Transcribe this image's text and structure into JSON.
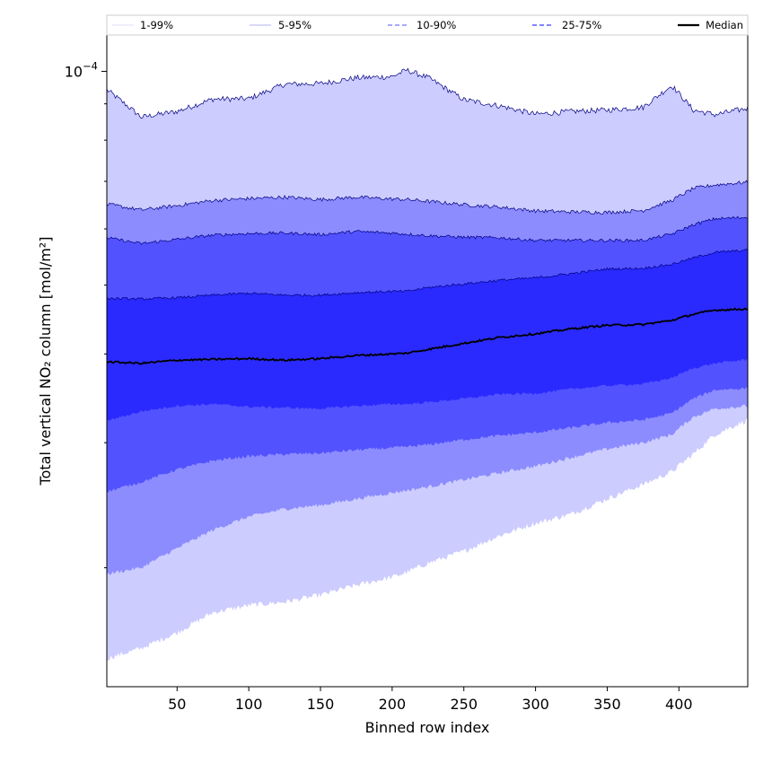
{
  "chart_data": {
    "type": "area",
    "xlabel": "Binned row index",
    "ylabel": "Total vertical NO₂ column [mol/m²]",
    "yscale": "log",
    "xlim": [
      1,
      448
    ],
    "ylim": [
      1.36e-05,
      0.0001125
    ],
    "x_ticks": [
      50,
      100,
      150,
      200,
      250,
      300,
      350,
      400
    ],
    "y_tick_labels": [
      {
        "value": 0.0001,
        "base": "10",
        "exponent": "−4"
      }
    ],
    "y_minor_ticks": [
      2e-05,
      3e-05,
      4e-05,
      5e-05,
      6e-05,
      7e-05,
      8e-05,
      9e-05
    ],
    "grid": false,
    "legend_position": "top",
    "legend": [
      "1-99%",
      "5-95%",
      "10-90%",
      "25-75%",
      "Median"
    ],
    "colors": {
      "band_1_99": "#ccccff",
      "band_5_95": "#8c8cff",
      "band_10_90": "#5252ff",
      "band_25_75": "#2a2aff",
      "median": "#000000",
      "edge": "#000080"
    },
    "x": [
      1,
      25,
      50,
      75,
      100,
      125,
      150,
      175,
      200,
      210,
      225,
      250,
      275,
      300,
      325,
      350,
      375,
      395,
      410,
      425,
      448
    ],
    "series": [
      {
        "name": "Median",
        "y": [
          3.9e-05,
          3.88e-05,
          3.92e-05,
          3.93e-05,
          3.94e-05,
          3.92e-05,
          3.94e-05,
          3.98e-05,
          4e-05,
          4.01e-05,
          4.06e-05,
          4.14e-05,
          4.22e-05,
          4.27e-05,
          4.34e-05,
          4.39e-05,
          4.4e-05,
          4.46e-05,
          4.55e-05,
          4.61e-05,
          4.63e-05
        ]
      },
      {
        "name": "25-75%",
        "lower": [
          3.22e-05,
          3.32e-05,
          3.38e-05,
          3.4e-05,
          3.37e-05,
          3.36e-05,
          3.35e-05,
          3.38e-05,
          3.4e-05,
          3.4e-05,
          3.42e-05,
          3.46e-05,
          3.51e-05,
          3.52e-05,
          3.57e-05,
          3.61e-05,
          3.63e-05,
          3.7e-05,
          3.82e-05,
          3.88e-05,
          3.93e-05
        ],
        "upper": [
          4.79e-05,
          4.78e-05,
          4.8e-05,
          4.84e-05,
          4.87e-05,
          4.84e-05,
          4.84e-05,
          4.88e-05,
          4.9e-05,
          4.9e-05,
          4.96e-05,
          5.02e-05,
          5.08e-05,
          5.12e-05,
          5.19e-05,
          5.27e-05,
          5.28e-05,
          5.35e-05,
          5.46e-05,
          5.56e-05,
          5.6e-05
        ]
      },
      {
        "name": "10-90%",
        "lower": [
          2.56e-05,
          2.64e-05,
          2.75e-05,
          2.83e-05,
          2.87e-05,
          2.89e-05,
          2.9e-05,
          2.93e-05,
          2.95e-05,
          2.96e-05,
          2.98e-05,
          3.03e-05,
          3.07e-05,
          3.1e-05,
          3.15e-05,
          3.2e-05,
          3.23e-05,
          3.3e-05,
          3.46e-05,
          3.56e-05,
          3.58e-05
        ],
        "upper": [
          5.83e-05,
          5.72e-05,
          5.8e-05,
          5.88e-05,
          5.91e-05,
          5.92e-05,
          5.89e-05,
          5.95e-05,
          5.92e-05,
          5.9e-05,
          5.87e-05,
          5.84e-05,
          5.83e-05,
          5.78e-05,
          5.78e-05,
          5.78e-05,
          5.78e-05,
          5.9e-05,
          6.08e-05,
          6.2e-05,
          6.23e-05
        ]
      },
      {
        "name": "5-95%",
        "lower": [
          1.96e-05,
          2e-05,
          2.13e-05,
          2.26e-05,
          2.36e-05,
          2.42e-05,
          2.45e-05,
          2.5e-05,
          2.55e-05,
          2.57e-05,
          2.6e-05,
          2.66e-05,
          2.72e-05,
          2.78e-05,
          2.86e-05,
          2.94e-05,
          3e-05,
          3.08e-05,
          3.26e-05,
          3.35e-05,
          3.38e-05
        ],
        "upper": [
          6.5e-05,
          6.38e-05,
          6.47e-05,
          6.58e-05,
          6.62e-05,
          6.65e-05,
          6.6e-05,
          6.65e-05,
          6.61e-05,
          6.6e-05,
          6.56e-05,
          6.49e-05,
          6.44e-05,
          6.36e-05,
          6.34e-05,
          6.33e-05,
          6.37e-05,
          6.58e-05,
          6.84e-05,
          6.92e-05,
          6.98e-05
        ]
      },
      {
        "name": "1-99%",
        "lower": [
          1.49e-05,
          1.54e-05,
          1.62e-05,
          1.73e-05,
          1.77e-05,
          1.79e-05,
          1.83e-05,
          1.89e-05,
          1.94e-05,
          1.97e-05,
          2.03e-05,
          2.11e-05,
          2.22e-05,
          2.31e-05,
          2.38e-05,
          2.5e-05,
          2.62e-05,
          2.73e-05,
          2.89e-05,
          3.08e-05,
          3.23e-05
        ],
        "upper": [
          9.42e-05,
          8.62e-05,
          8.78e-05,
          9.14e-05,
          9.15e-05,
          9.59e-05,
          9.61e-05,
          9.79e-05,
          9.83e-05,
          0.0001004,
          9.8e-05,
          9.12e-05,
          8.94e-05,
          8.7e-05,
          8.78e-05,
          8.82e-05,
          8.9e-05,
          9.55e-05,
          8.82e-05,
          8.69e-05,
          8.87e-05
        ]
      }
    ]
  }
}
